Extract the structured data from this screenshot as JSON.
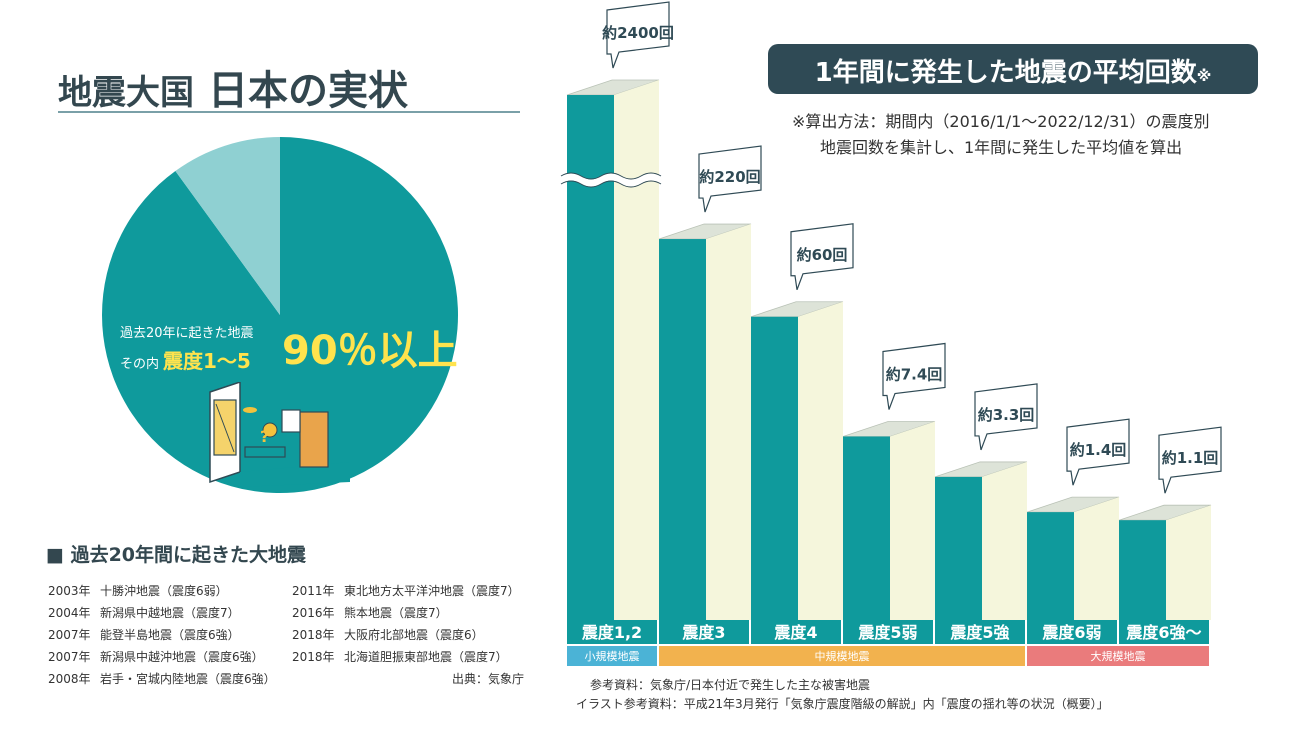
{
  "left": {
    "title_part1": "地震大国",
    "title_part2": "日本の実状",
    "pie_label_line1": "過去20年に起きた地震",
    "pie_label_line2_prefix": "その内",
    "pie_label_line2_shindo": "震度1～5",
    "pie_percent_label": "90％以上",
    "pie_colors": {
      "major": "#0f9a9c",
      "minor": "#8fd0d2"
    },
    "major_quakes_heading": "■ 過去20年間に起きた大地震",
    "major_quakes_col1": [
      {
        "year": "2003年",
        "name": "十勝沖地震（震度6弱）"
      },
      {
        "year": "2004年",
        "name": "新潟県中越地震（震度7）"
      },
      {
        "year": "2007年",
        "name": "能登半島地震（震度6強）"
      },
      {
        "year": "2007年",
        "name": "新潟県中越沖地震（震度6強）"
      },
      {
        "year": "2008年",
        "name": "岩手・宮城内陸地震（震度6強）"
      }
    ],
    "major_quakes_col2": [
      {
        "year": "2011年",
        "name": "東北地方太平洋沖地震（震度7）"
      },
      {
        "year": "2016年",
        "name": "熊本地震（震度7）"
      },
      {
        "year": "2018年",
        "name": "大阪府北部地震（震度6）"
      },
      {
        "year": "2018年",
        "name": "北海道胆振東部地震（震度7）"
      }
    ],
    "source": "出典：気象庁"
  },
  "right": {
    "title": "1年間に発生した地震の平均回数",
    "title_mark": "※",
    "note_line1": "※算出方法：期間内（2016/1/1～2022/12/31）の震度別",
    "note_line2": "地震回数を集計し、1年間に発生した平均値を算出",
    "ref1": "参考資料：気象庁/日本付近で発生した主な被害地震",
    "ref2": "イラスト参考資料：平成21年3月発行「気象庁震度階級の解説」内「震度の揺れ等の状況（概要）」"
  },
  "chart_data": [
    {
      "type": "pie",
      "slices": [
        {
          "label": "震度1～5",
          "value": 90
        },
        {
          "label": "",
          "value": 10
        }
      ]
    },
    {
      "type": "bar",
      "categories": [
        "震度1,2",
        "震度3",
        "震度4",
        "震度5弱",
        "震度5強",
        "震度6弱",
        "震度6強～"
      ],
      "values": [
        2400,
        220,
        60,
        7.4,
        3.3,
        1.4,
        1.1
      ],
      "value_labels": [
        "約2400回",
        "約220回",
        "約60回",
        "約7.4回",
        "約3.3回",
        "約1.4回",
        "約1.1回"
      ],
      "axis_break_on_first_bar": true,
      "groups": [
        {
          "label": "小規模地震",
          "color": "#4bb3d6",
          "span": [
            0,
            0
          ]
        },
        {
          "label": "中規模地震",
          "color": "#f2b24e",
          "span": [
            1,
            4
          ]
        },
        {
          "label": "大規模地震",
          "color": "#ea7b7c",
          "span": [
            5,
            6
          ]
        }
      ],
      "colors": {
        "front": "#0f9a9c",
        "side": "#f5f6dc",
        "top": "#dde3d8",
        "label_band": "#0f9a9c"
      }
    }
  ]
}
